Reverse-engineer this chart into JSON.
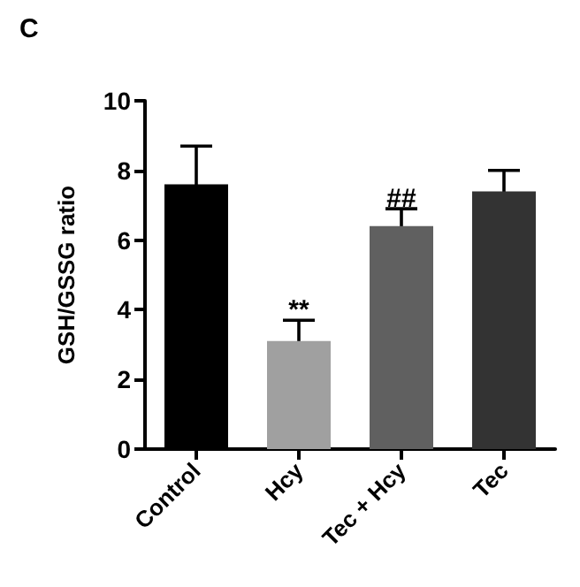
{
  "chart_data": {
    "type": "bar",
    "title": "C",
    "ylabel": "GSH/GSSG ratio",
    "categories": [
      "Control",
      "Hcy",
      "Tec + Hcy",
      "Tec"
    ],
    "values": [
      7.6,
      3.1,
      6.4,
      7.4
    ],
    "colors": [
      "#000000",
      "#a0a0a0",
      "#606060",
      "#333333"
    ],
    "errors": [
      1.1,
      0.6,
      0.5,
      0.6
    ],
    "ylim": [
      0,
      10
    ],
    "yticks": [
      0,
      2,
      4,
      6,
      8,
      10
    ],
    "grid": false,
    "annotations": [
      {
        "text": "**",
        "x": "Hcy",
        "y": 3.7
      },
      {
        "text": "##",
        "x": "Tec + Hcy",
        "y": 6.9
      }
    ]
  }
}
